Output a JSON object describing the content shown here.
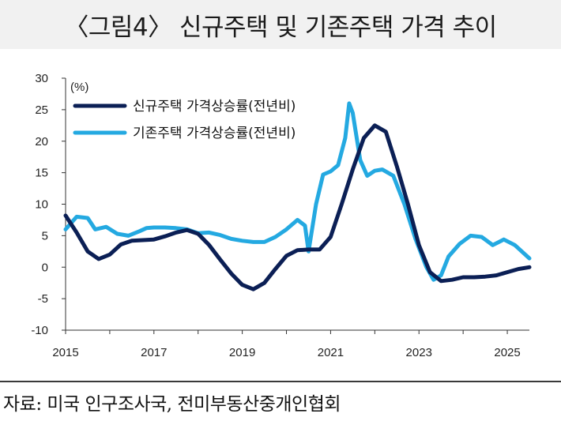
{
  "header": {
    "title": "〈그림4〉 신규주택 및 기존주택 가격 추이"
  },
  "footer": {
    "source": "자료: 미국 인구조사국, 전미부동산중개인협회"
  },
  "chart_data": {
    "type": "line",
    "unit_label": "(%)",
    "x_ticks": [
      "2015",
      "2017",
      "2019",
      "2021",
      "2023",
      "2025"
    ],
    "y_ticks": [
      30,
      25,
      20,
      15,
      10,
      5,
      0,
      -5,
      -10
    ],
    "xlim": [
      2015,
      2025.5
    ],
    "ylim": [
      -10,
      30
    ],
    "legend": "top-left",
    "series": [
      {
        "name": "신규주택 가격상승률(전년비)",
        "color": "#0b1f55",
        "points": [
          [
            2015.0,
            8.2
          ],
          [
            2015.25,
            5.5
          ],
          [
            2015.5,
            2.5
          ],
          [
            2015.75,
            1.3
          ],
          [
            2016.0,
            2.0
          ],
          [
            2016.25,
            3.6
          ],
          [
            2016.5,
            4.2
          ],
          [
            2016.75,
            4.3
          ],
          [
            2017.0,
            4.4
          ],
          [
            2017.25,
            4.9
          ],
          [
            2017.5,
            5.5
          ],
          [
            2017.75,
            5.9
          ],
          [
            2018.0,
            5.3
          ],
          [
            2018.25,
            3.5
          ],
          [
            2018.5,
            1.2
          ],
          [
            2018.75,
            -1.0
          ],
          [
            2019.0,
            -2.8
          ],
          [
            2019.25,
            -3.5
          ],
          [
            2019.5,
            -2.5
          ],
          [
            2019.75,
            -0.3
          ],
          [
            2020.0,
            1.8
          ],
          [
            2020.25,
            2.7
          ],
          [
            2020.5,
            2.8
          ],
          [
            2020.75,
            2.8
          ],
          [
            2021.0,
            4.8
          ],
          [
            2021.25,
            10.0
          ],
          [
            2021.5,
            15.5
          ],
          [
            2021.75,
            20.5
          ],
          [
            2022.0,
            22.5
          ],
          [
            2022.25,
            21.5
          ],
          [
            2022.5,
            16.0
          ],
          [
            2022.75,
            10.0
          ],
          [
            2023.0,
            3.5
          ],
          [
            2023.25,
            -0.8
          ],
          [
            2023.5,
            -2.2
          ],
          [
            2023.75,
            -2.0
          ],
          [
            2024.0,
            -1.6
          ],
          [
            2024.25,
            -1.6
          ],
          [
            2024.5,
            -1.5
          ],
          [
            2024.75,
            -1.3
          ],
          [
            2025.0,
            -0.8
          ],
          [
            2025.25,
            -0.3
          ],
          [
            2025.5,
            0.0
          ]
        ]
      },
      {
        "name": "기존주택 가격상승률(전년비)",
        "color": "#24a9e1",
        "points": [
          [
            2015.0,
            6.0
          ],
          [
            2015.25,
            8.0
          ],
          [
            2015.5,
            7.8
          ],
          [
            2015.67,
            6.0
          ],
          [
            2015.92,
            6.4
          ],
          [
            2016.17,
            5.3
          ],
          [
            2016.42,
            5.0
          ],
          [
            2016.67,
            5.7
          ],
          [
            2016.83,
            6.2
          ],
          [
            2017.0,
            6.3
          ],
          [
            2017.25,
            6.3
          ],
          [
            2017.5,
            6.2
          ],
          [
            2017.75,
            6.0
          ],
          [
            2018.0,
            5.4
          ],
          [
            2018.25,
            5.5
          ],
          [
            2018.5,
            5.1
          ],
          [
            2018.75,
            4.5
          ],
          [
            2019.0,
            4.2
          ],
          [
            2019.25,
            4.0
          ],
          [
            2019.5,
            4.0
          ],
          [
            2019.75,
            4.8
          ],
          [
            2020.0,
            6.0
          ],
          [
            2020.25,
            7.5
          ],
          [
            2020.42,
            6.6
          ],
          [
            2020.5,
            2.5
          ],
          [
            2020.67,
            10.0
          ],
          [
            2020.83,
            14.7
          ],
          [
            2021.0,
            15.2
          ],
          [
            2021.17,
            16.2
          ],
          [
            2021.33,
            20.5
          ],
          [
            2021.42,
            26.0
          ],
          [
            2021.5,
            24.5
          ],
          [
            2021.67,
            17.0
          ],
          [
            2021.83,
            14.5
          ],
          [
            2022.0,
            15.3
          ],
          [
            2022.17,
            15.5
          ],
          [
            2022.42,
            14.5
          ],
          [
            2022.67,
            10.0
          ],
          [
            2022.92,
            4.5
          ],
          [
            2023.17,
            0.0
          ],
          [
            2023.33,
            -2.0
          ],
          [
            2023.5,
            -1.3
          ],
          [
            2023.67,
            1.7
          ],
          [
            2023.92,
            3.7
          ],
          [
            2024.17,
            5.0
          ],
          [
            2024.42,
            4.8
          ],
          [
            2024.67,
            3.5
          ],
          [
            2024.92,
            4.4
          ],
          [
            2025.17,
            3.5
          ],
          [
            2025.5,
            1.4
          ]
        ]
      }
    ]
  }
}
